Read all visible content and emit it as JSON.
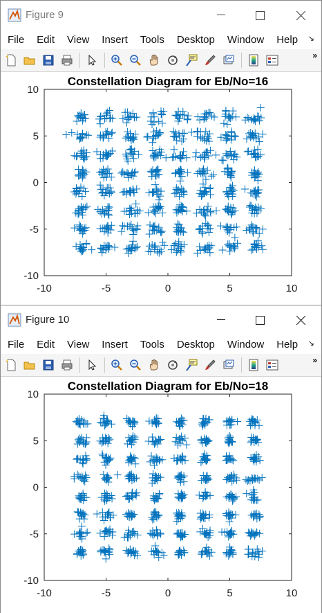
{
  "windows": [
    {
      "title": "Figure 9",
      "menu": [
        "File",
        "Edit",
        "View",
        "Insert",
        "Tools",
        "Desktop",
        "Window",
        "Help"
      ],
      "toolbar_icons": [
        "new-figure-icon",
        "open-file-icon",
        "save-icon",
        "print-icon",
        "pointer-icon",
        "zoom-in-icon",
        "zoom-out-icon",
        "pan-icon",
        "rotate-icon",
        "data-cursor-icon",
        "brush-icon",
        "link-plot-icon",
        "colorbar-icon",
        "legend-icon"
      ],
      "chart_data": {
        "type": "scatter",
        "title": "Constellation Diagram for Eb/No=16",
        "xlabel": "",
        "ylabel": "",
        "xlim": [
          -10,
          10
        ],
        "ylim": [
          -10,
          10
        ],
        "xticks": [
          "-10",
          "-5",
          "0",
          "5",
          "10"
        ],
        "yticks": [
          "10",
          "5",
          "0",
          "-5",
          "-10"
        ],
        "marker": "+",
        "color": "#0072BD",
        "constellation_levels": [
          -7,
          -5,
          -3,
          -1,
          1,
          3,
          5,
          7
        ],
        "points_per_cluster": 14,
        "cluster_spread": 0.55,
        "grid": false
      }
    },
    {
      "title": "Figure 10",
      "menu": [
        "File",
        "Edit",
        "View",
        "Insert",
        "Tools",
        "Desktop",
        "Window",
        "Help"
      ],
      "toolbar_icons": [
        "new-figure-icon",
        "open-file-icon",
        "save-icon",
        "print-icon",
        "pointer-icon",
        "zoom-in-icon",
        "zoom-out-icon",
        "pan-icon",
        "rotate-icon",
        "data-cursor-icon",
        "brush-icon",
        "link-plot-icon",
        "colorbar-icon",
        "legend-icon"
      ],
      "chart_data": {
        "type": "scatter",
        "title": "Constellation Diagram for Eb/No=18",
        "xlabel": "",
        "ylabel": "",
        "xlim": [
          -10,
          10
        ],
        "ylim": [
          -10,
          10
        ],
        "xticks": [
          "-10",
          "-5",
          "0",
          "5",
          "10"
        ],
        "yticks": [
          "10",
          "5",
          "0",
          "-5",
          "-10"
        ],
        "marker": "+",
        "color": "#0072BD",
        "constellation_levels": [
          -7,
          -5,
          -3,
          -1,
          1,
          3,
          5,
          7
        ],
        "points_per_cluster": 14,
        "cluster_spread": 0.42,
        "grid": false
      }
    }
  ]
}
